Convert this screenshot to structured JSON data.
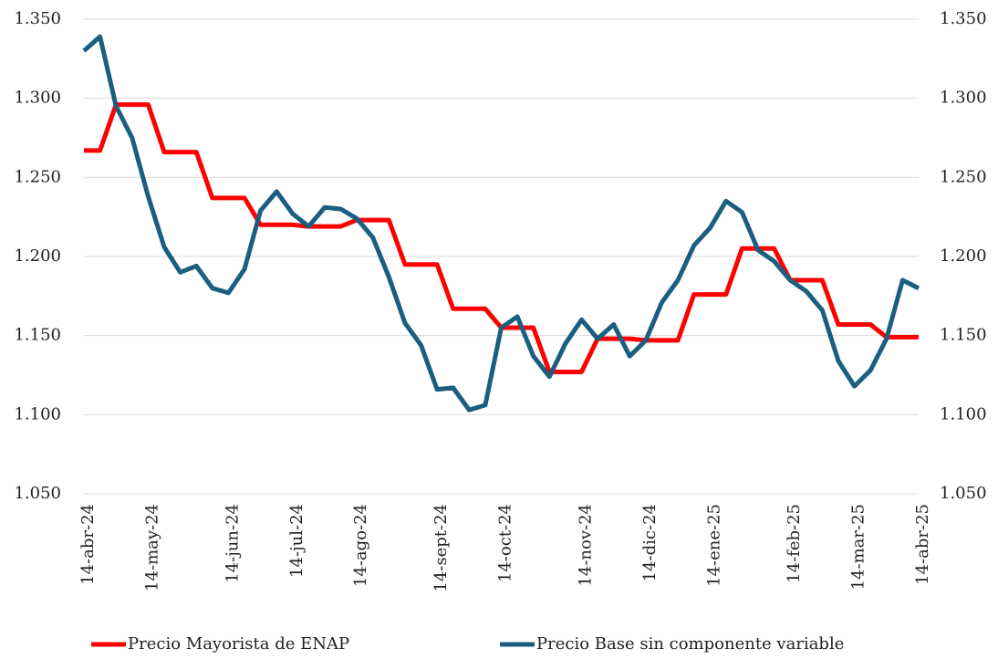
{
  "chart_data": {
    "type": "line",
    "categories": [
      "14-abr-24",
      null,
      null,
      null,
      "14-may-24",
      null,
      null,
      null,
      null,
      "14-jun-24",
      null,
      null,
      null,
      "14-jul-24",
      null,
      null,
      null,
      "14-ago-24",
      null,
      null,
      null,
      null,
      "14-sept-24",
      null,
      null,
      null,
      "14-oct-24",
      null,
      null,
      null,
      null,
      "14-nov-24",
      null,
      null,
      null,
      "14-dic-24",
      null,
      null,
      null,
      "14-ene-25",
      null,
      null,
      null,
      null,
      "14-feb-25",
      null,
      null,
      null,
      "14-mar-25",
      null,
      null,
      null,
      "14-abr-25"
    ],
    "series": [
      {
        "name": "Precio Mayorista de ENAP",
        "color": "#ff0000",
        "values": [
          1267,
          1267,
          1296,
          1296,
          1296,
          1266,
          1266,
          1266,
          1237,
          1237,
          1237,
          1220,
          1220,
          1220,
          1219,
          1219,
          1219,
          1223,
          1223,
          1223,
          1195,
          1195,
          1195,
          1167,
          1167,
          1167,
          1155,
          1155,
          1155,
          1127,
          1127,
          1127,
          1148,
          1148,
          1148,
          1147,
          1147,
          1147,
          1176,
          1176,
          1176,
          1205,
          1205,
          1205,
          1185,
          1185,
          1185,
          1157,
          1157,
          1157,
          1149,
          1149,
          1149
        ]
      },
      {
        "name": "Precio Base sin componente variable",
        "color": "#1b5e80",
        "values": [
          1330,
          1339,
          1295,
          1275,
          1238,
          1206,
          1190,
          1194,
          1180,
          1177,
          1192,
          1229,
          1241,
          1227,
          1219,
          1231,
          1230,
          1224,
          1212,
          1187,
          1158,
          1144,
          1116,
          1117,
          1103,
          1106,
          1155,
          1162,
          1137,
          1124,
          1145,
          1160,
          1148,
          1157,
          1137,
          1147,
          1171,
          1185,
          1207,
          1218,
          1235,
          1228,
          1204,
          1197,
          1185,
          1178,
          1166,
          1134,
          1118,
          1128,
          1148,
          1185,
          1180
        ]
      }
    ],
    "ylim": [
      1050,
      1350
    ],
    "yticks": [
      {
        "value": 1050,
        "label": "1.050"
      },
      {
        "value": 1100,
        "label": "1.100"
      },
      {
        "value": 1150,
        "label": "1.150"
      },
      {
        "value": 1200,
        "label": "1.200"
      },
      {
        "value": 1250,
        "label": "1.250"
      },
      {
        "value": 1300,
        "label": "1.300"
      },
      {
        "value": 1350,
        "label": "1.350"
      }
    ],
    "y2lim": [
      1050,
      1350
    ],
    "y2ticks": [
      {
        "value": 1050,
        "label": "1.050"
      },
      {
        "value": 1100,
        "label": "1.100"
      },
      {
        "value": 1150,
        "label": "1.150"
      },
      {
        "value": 1200,
        "label": "1.200"
      },
      {
        "value": 1250,
        "label": "1.250"
      },
      {
        "value": 1300,
        "label": "1.300"
      },
      {
        "value": 1350,
        "label": "1.350"
      }
    ],
    "grid": true,
    "legend": "bottom"
  }
}
